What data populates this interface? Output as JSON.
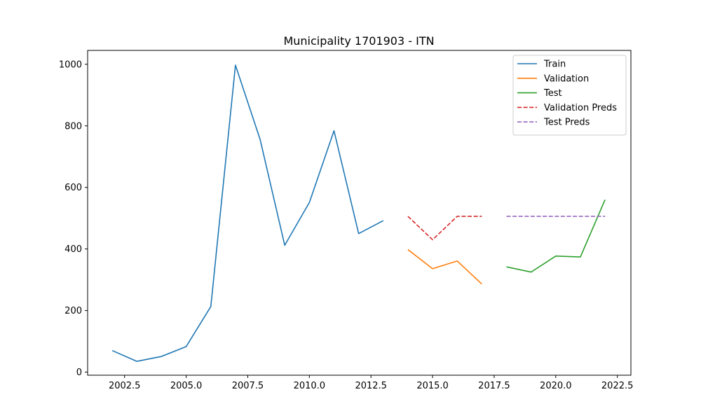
{
  "chart_data": {
    "type": "line",
    "title": "Municipality 1701903 - ITN",
    "xlabel": "",
    "ylabel": "",
    "xlim": [
      2001.0,
      2023.05
    ],
    "ylim": [
      -10,
      1045
    ],
    "x_ticks": [
      2002.5,
      2005.0,
      2007.5,
      2010.0,
      2012.5,
      2015.0,
      2017.5,
      2020.0,
      2022.5
    ],
    "x_tick_labels": [
      "2002.5",
      "2005.0",
      "2007.5",
      "2010.0",
      "2012.5",
      "2015.0",
      "2017.5",
      "2020.0",
      "2022.5"
    ],
    "y_ticks": [
      0,
      200,
      400,
      600,
      800,
      1000
    ],
    "y_tick_labels": [
      "0",
      "200",
      "400",
      "600",
      "800",
      "1000"
    ],
    "grid": false,
    "legend_position": "top-right",
    "series": [
      {
        "name": "Train",
        "color": "#1f77b4",
        "dash": "solid",
        "x": [
          2002,
          2003,
          2004,
          2005,
          2006,
          2007,
          2008,
          2009,
          2010,
          2011,
          2012,
          2013
        ],
        "values": [
          70,
          35,
          51,
          83,
          213,
          997,
          756,
          412,
          551,
          784,
          450,
          492
        ]
      },
      {
        "name": "Validation",
        "color": "#ff7f0e",
        "dash": "solid",
        "x": [
          2014,
          2015,
          2016,
          2017
        ],
        "values": [
          398,
          336,
          361,
          286
        ]
      },
      {
        "name": "Test",
        "color": "#2ca02c",
        "dash": "solid",
        "x": [
          2018,
          2019,
          2020,
          2021,
          2022
        ],
        "values": [
          342,
          325,
          377,
          374,
          560
        ]
      },
      {
        "name": "Validation Preds",
        "color": "#d62728",
        "dash": "dashed",
        "x": [
          2014,
          2015,
          2016,
          2017
        ],
        "values": [
          506,
          430,
          506,
          506
        ]
      },
      {
        "name": "Test Preds",
        "color": "#9467bd",
        "dash": "dashed",
        "x": [
          2018,
          2019,
          2020,
          2021,
          2022
        ],
        "values": [
          506,
          506,
          506,
          506,
          506
        ]
      }
    ]
  }
}
